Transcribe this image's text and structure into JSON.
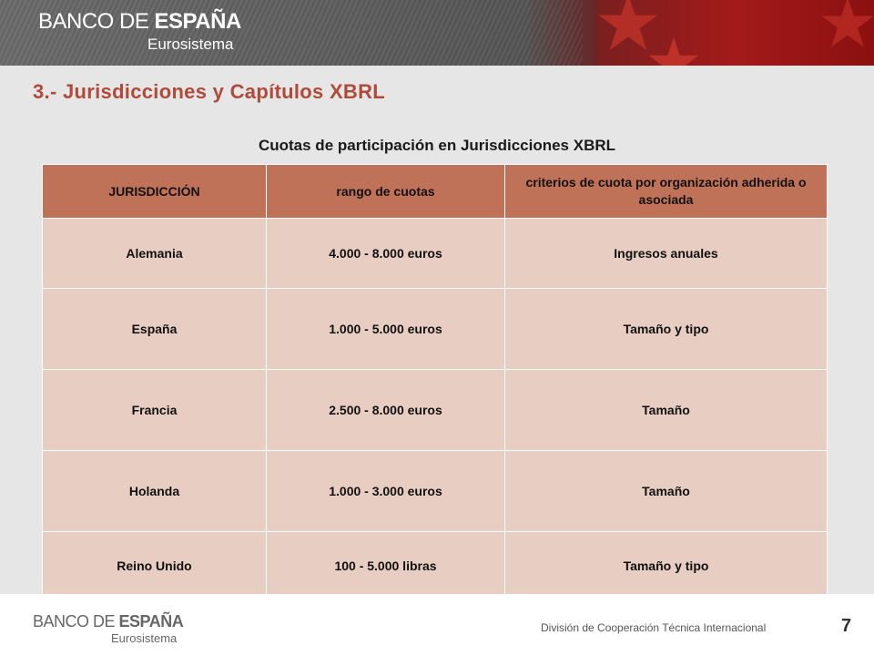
{
  "header": {
    "logo_prefix": "BANCO DE ",
    "logo_bold": "ESPAÑA",
    "logo_sub": "Eurosistema"
  },
  "slide": {
    "title": "3.- Jurisdicciones y Capítulos XBRL",
    "subtitle": "Cuotas de participación en Jurisdicciones XBRL"
  },
  "table": {
    "headers": [
      "JURISDICCIÓN",
      "rango de cuotas",
      "criterios de cuota por organización adherida o asociada"
    ],
    "rows": [
      [
        "Alemania",
        "4.000 - 8.000 euros",
        "Ingresos anuales"
      ],
      [
        "España",
        "1.000 - 5.000 euros",
        "Tamaño y tipo"
      ],
      [
        "Francia",
        "2.500 - 8.000 euros",
        "Tamaño"
      ],
      [
        "Holanda",
        "1.000 - 3.000 euros",
        "Tamaño"
      ],
      [
        "Reino Unido",
        "100 - 5.000 libras",
        "Tamaño y tipo"
      ]
    ]
  },
  "footer": {
    "logo_prefix": "BANCO DE ",
    "logo_bold": "ESPAÑA",
    "logo_sub": "Eurosistema",
    "division": "División de Cooperación Técnica Internacional",
    "page_number": "7"
  },
  "colors": {
    "title": "#b04a3a",
    "table_header": "#c07258",
    "table_cell": "#e8cdc2",
    "banner_red": "#a31a1a"
  },
  "icons": [
    "star-icon"
  ]
}
